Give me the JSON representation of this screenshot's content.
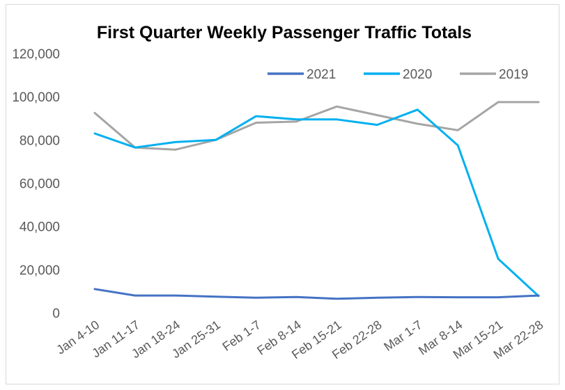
{
  "chart_data": {
    "type": "line",
    "title": "First Quarter Weekly Passenger Traffic Totals",
    "xlabel": "",
    "ylabel": "",
    "categories": [
      "Jan 4-10",
      "Jan 11-17",
      "Jan 18-24",
      "Jan 25-31",
      "Feb 1-7",
      "Feb 8-14",
      "Feb 15-21",
      "Feb 22-28",
      "Mar 1-7",
      "Mar 8-14",
      "Mar 15-21",
      "Mar 22-28"
    ],
    "y_ticks": [
      "0",
      "20,000",
      "40,000",
      "60,000",
      "80,000",
      "100,000",
      "120,000"
    ],
    "ylim": [
      0,
      120000
    ],
    "grid": false,
    "legend_position": "top-right",
    "series": [
      {
        "name": "2021",
        "color": "#4472c4",
        "values": [
          11000,
          8000,
          8000,
          7500,
          7000,
          7300,
          6500,
          7000,
          7300,
          7200,
          7200,
          8000
        ]
      },
      {
        "name": "2020",
        "color": "#00b0f0",
        "values": [
          83000,
          76500,
          79000,
          80000,
          91000,
          89500,
          89500,
          87000,
          94000,
          77500,
          25000,
          7800
        ]
      },
      {
        "name": "2019",
        "color": "#a5a5a5",
        "values": [
          92500,
          76500,
          75500,
          80000,
          88000,
          88500,
          95500,
          91500,
          87500,
          84500,
          97500,
          97500
        ]
      }
    ]
  }
}
